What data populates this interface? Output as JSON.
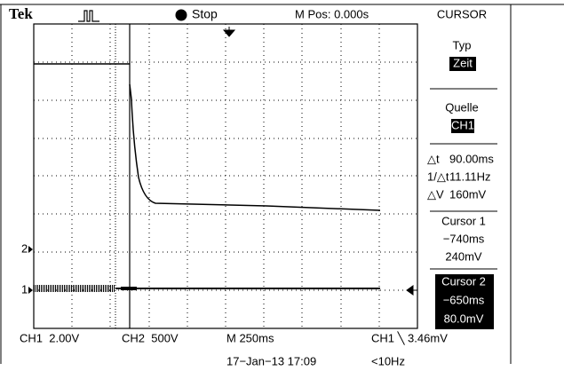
{
  "header": {
    "brand": "Tek",
    "status": "Stop",
    "position": "M Pos: 0.000s"
  },
  "menu": {
    "title": "CURSOR",
    "items": [
      {
        "label": "Typ",
        "value": "Zeit"
      },
      {
        "label": "Quelle",
        "value": "CH1"
      }
    ],
    "readouts": [
      {
        "label": "△t",
        "value": "90.00ms"
      },
      {
        "label": "1/△t",
        "value": "11.11Hz"
      },
      {
        "label": "△V",
        "value": "160mV"
      }
    ],
    "cursors": [
      {
        "name": "Cursor 1",
        "time": "−740ms",
        "voltage": "240mV"
      },
      {
        "name": "Cursor 2",
        "time": "−650ms",
        "voltage": "80.0mV"
      }
    ]
  },
  "markers": {
    "ch2": "2",
    "ch1": "1"
  },
  "footer": {
    "ch1": "CH1  2.00V",
    "ch2": "CH2  500V",
    "timebase": "M 250ms",
    "trigger": "CH1 ╲ 3.46mV",
    "date": "17−Jan−13 17:09",
    "frequency": "<10Hz"
  }
}
